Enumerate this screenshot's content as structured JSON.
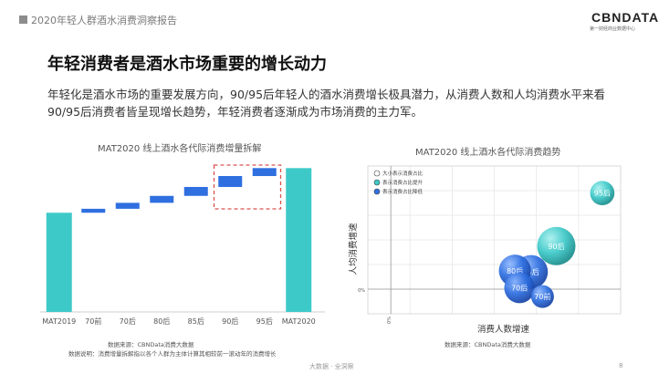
{
  "header": {
    "report_title": "2020年轻人群酒水消费洞察报告",
    "logo": "CBNDATA",
    "logo_subtitle": "第一财经商业数据中心"
  },
  "slide": {
    "title": "年轻消费者是酒水市场重要的增长动力",
    "description": "年轻化是酒水市场的重要发展方向，90/95后年轻人的酒水消费增长极具潜力，从消费人数和人均消费水平来看90/95后消费者皆呈现增长趋势，年轻消费者逐渐成为市场消费的主力军。"
  },
  "left_chart": {
    "title": "MAT2020 线上酒水各代际消费增量拆解",
    "source": "数据来源：CBNData消费大数据",
    "note": "数据说明：消费增量拆解指以各个人群为主体计算其相较前一滚动年的消费增长",
    "bar_color": "#3ec9c9",
    "step_color": "#2f6fe0",
    "highlight_color": "#d9534f"
  },
  "right_chart": {
    "title": "MAT2020 线上酒水各代际消费趋势",
    "source": "数据来源：CBNData消费大数据",
    "legend": [
      {
        "label": "大小表示消费占比",
        "color": "#ffffff"
      },
      {
        "label": "表示消费占比提升",
        "color": "#3ec9c9"
      },
      {
        "label": "表示消费占比降低",
        "color": "#2f6fe0"
      }
    ]
  },
  "footer": {
    "text": "大数据 · 全洞察",
    "page": "8"
  },
  "chart_data": [
    {
      "type": "bar",
      "subtype": "waterfall",
      "title": "MAT2020 线上酒水各代际消费增量拆解",
      "categories": [
        "MAT2019",
        "70前",
        "70后",
        "80后",
        "85后",
        "90后",
        "95后",
        "MAT2020"
      ],
      "values": [
        100,
        4,
        6,
        7,
        9,
        11,
        8,
        145
      ],
      "highlighted_categories": [
        "90后",
        "95后"
      ]
    },
    {
      "type": "scatter",
      "subtype": "bubble",
      "title": "MAT2020 线上酒水各代际消费趋势",
      "xlabel": "消费人数增速",
      "ylabel": "人均消费增速",
      "x_origin_label": "0%",
      "y_origin_label": "0%",
      "xlim": [
        -0.1,
        1.0
      ],
      "ylim": [
        -0.2,
        1.0
      ],
      "points": [
        {
          "name": "95后",
          "x": 0.92,
          "y": 0.78,
          "size": 0.55,
          "trend": "up"
        },
        {
          "name": "90后",
          "x": 0.72,
          "y": 0.35,
          "size": 1.0,
          "trend": "up"
        },
        {
          "name": "85后",
          "x": 0.61,
          "y": 0.14,
          "size": 0.85,
          "trend": "down"
        },
        {
          "name": "80后",
          "x": 0.54,
          "y": 0.15,
          "size": 0.8,
          "trend": "down"
        },
        {
          "name": "70后",
          "x": 0.56,
          "y": 0.01,
          "size": 0.75,
          "trend": "down"
        },
        {
          "name": "70前",
          "x": 0.66,
          "y": -0.06,
          "size": 0.5,
          "trend": "down"
        }
      ]
    }
  ]
}
